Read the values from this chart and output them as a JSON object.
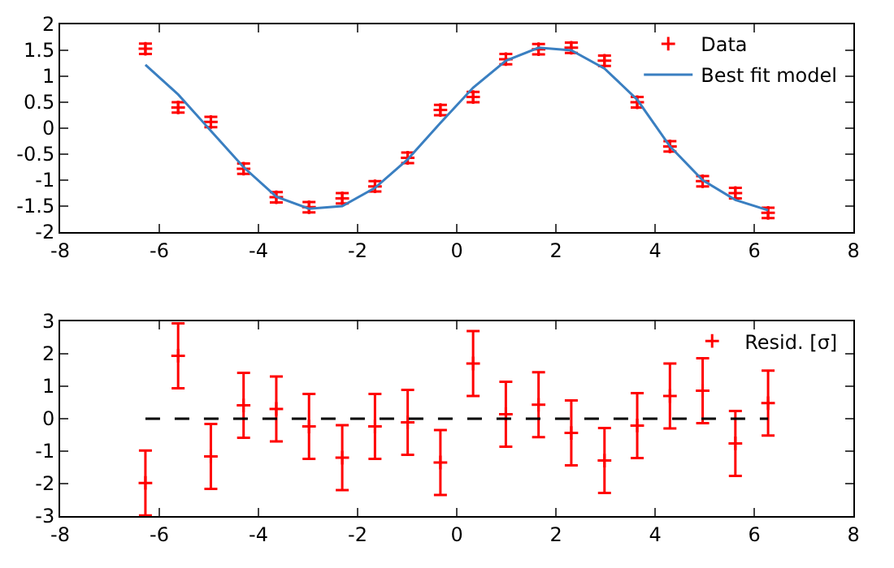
{
  "chart_data": [
    {
      "type": "scatter",
      "x": [
        -6.28,
        -5.62,
        -4.96,
        -4.3,
        -3.64,
        -2.98,
        -2.31,
        -1.65,
        -0.99,
        -0.33,
        0.33,
        0.99,
        1.65,
        2.31,
        2.98,
        3.64,
        4.3,
        4.96,
        5.62,
        6.28
      ],
      "series": [
        {
          "name": "Data",
          "color": "#ff0000",
          "marker": "cross",
          "values": [
            1.53,
            0.4,
            0.12,
            -0.78,
            -1.33,
            -1.52,
            -1.35,
            -1.12,
            -0.57,
            0.35,
            0.6,
            1.33,
            1.52,
            1.55,
            1.3,
            0.5,
            -0.35,
            -1.02,
            -1.25,
            -1.63
          ],
          "errors": [
            0.1,
            0.1,
            0.1,
            0.1,
            0.1,
            0.1,
            0.1,
            0.1,
            0.1,
            0.1,
            0.1,
            0.1,
            0.1,
            0.1,
            0.1,
            0.1,
            0.1,
            0.1,
            0.1,
            0.1
          ]
        },
        {
          "name": "Best fit model",
          "type": "line",
          "color": "#3a7fc1",
          "line_style": "solid",
          "values": [
            1.22,
            0.65,
            -0.05,
            -0.75,
            -1.32,
            -1.55,
            -1.5,
            -1.15,
            -0.6,
            0.1,
            0.78,
            1.3,
            1.55,
            1.5,
            1.15,
            0.55,
            -0.35,
            -1.0,
            -1.38,
            -1.58
          ]
        }
      ],
      "xlim": [
        -8,
        8
      ],
      "xticks": [
        -8,
        -6,
        -4,
        -2,
        0,
        2,
        4,
        6,
        8
      ],
      "ylim": [
        -2,
        2
      ],
      "yticks": [
        -2,
        -1.5,
        -1,
        -0.5,
        0,
        0.5,
        1,
        1.5,
        2
      ],
      "grid": false,
      "legend": "top right"
    },
    {
      "type": "scatter",
      "x": [
        -6.28,
        -5.62,
        -4.96,
        -4.3,
        -3.64,
        -2.98,
        -2.31,
        -1.65,
        -0.99,
        -0.33,
        0.33,
        0.99,
        1.65,
        2.31,
        2.98,
        3.64,
        4.3,
        4.96,
        5.62,
        6.28
      ],
      "series": [
        {
          "name": "Resid. [σ]",
          "color": "#ff0000",
          "marker": "cross",
          "values": [
            -1.98,
            1.94,
            -1.16,
            0.41,
            0.3,
            -0.24,
            -1.2,
            -0.24,
            -0.11,
            -1.35,
            1.7,
            0.14,
            0.43,
            -0.44,
            -1.29,
            -0.21,
            0.7,
            0.86,
            -0.76,
            0.48
          ],
          "errors": [
            1,
            1,
            1,
            1,
            1,
            1,
            1,
            1,
            1,
            1,
            1,
            1,
            1,
            1,
            1,
            1,
            1,
            1,
            1,
            1
          ]
        },
        {
          "type": "line",
          "color": "#000000",
          "line_style": "dashed",
          "x": [
            -6.28,
            6.28
          ],
          "values": [
            0,
            0
          ]
        }
      ],
      "xlim": [
        -8,
        8
      ],
      "xticks": [
        -8,
        -6,
        -4,
        -2,
        0,
        2,
        4,
        6,
        8
      ],
      "ylim": [
        -3,
        3
      ],
      "yticks": [
        -3,
        -2,
        -1,
        0,
        1,
        2,
        3
      ],
      "grid": false,
      "legend": "top right"
    }
  ]
}
